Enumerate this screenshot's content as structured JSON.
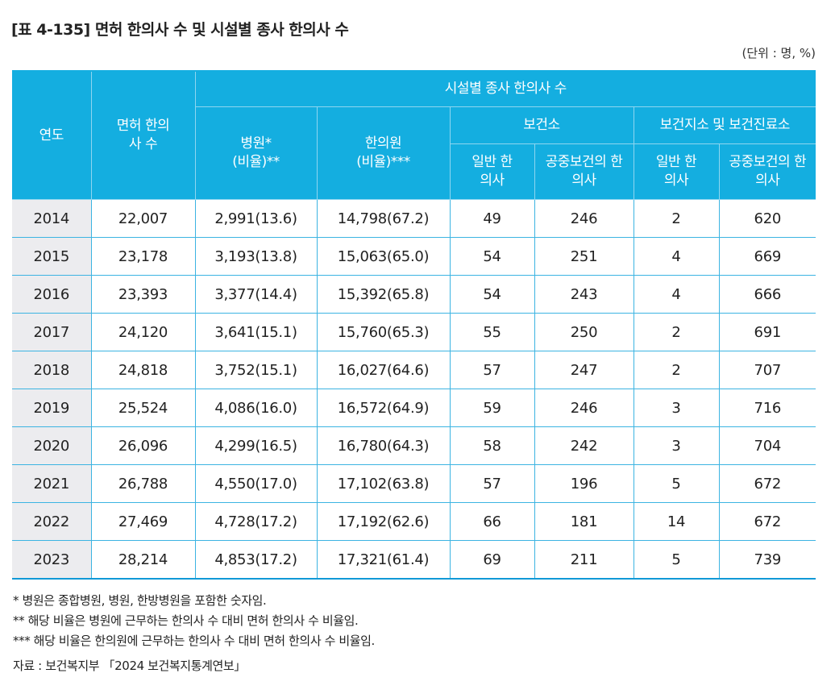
{
  "title": "[표 4-135] 면허 한의사 수 및 시설별 종사 한의사 수",
  "unit": "(단위 : 명, %)",
  "header": {
    "year": "연도",
    "licensed": "면허 한의사 수",
    "facility_group": "시설별 종사 한의사 수",
    "hospital": "병원*",
    "hospital_ratio": "(비율)**",
    "clinic": "한의원",
    "clinic_ratio": "(비율)***",
    "health_center": "보건소",
    "branch_center": "보건지소 및 보건진료소",
    "general": "일반 한의사",
    "public_health": "공중보건의 한의사",
    "general2": "일반 한의사",
    "public_health2": "공중보건의 한의사"
  },
  "rows": [
    {
      "year": "2014",
      "licensed": "22,007",
      "hospital": "2,991(13.6)",
      "clinic": "14,798(67.2)",
      "hc_general": "49",
      "hc_public": "246",
      "br_general": "2",
      "br_public": "620"
    },
    {
      "year": "2015",
      "licensed": "23,178",
      "hospital": "3,193(13.8)",
      "clinic": "15,063(65.0)",
      "hc_general": "54",
      "hc_public": "251",
      "br_general": "4",
      "br_public": "669"
    },
    {
      "year": "2016",
      "licensed": "23,393",
      "hospital": "3,377(14.4)",
      "clinic": "15,392(65.8)",
      "hc_general": "54",
      "hc_public": "243",
      "br_general": "4",
      "br_public": "666"
    },
    {
      "year": "2017",
      "licensed": "24,120",
      "hospital": "3,641(15.1)",
      "clinic": "15,760(65.3)",
      "hc_general": "55",
      "hc_public": "250",
      "br_general": "2",
      "br_public": "691"
    },
    {
      "year": "2018",
      "licensed": "24,818",
      "hospital": "3,752(15.1)",
      "clinic": "16,027(64.6)",
      "hc_general": "57",
      "hc_public": "247",
      "br_general": "2",
      "br_public": "707"
    },
    {
      "year": "2019",
      "licensed": "25,524",
      "hospital": "4,086(16.0)",
      "clinic": "16,572(64.9)",
      "hc_general": "59",
      "hc_public": "246",
      "br_general": "3",
      "br_public": "716"
    },
    {
      "year": "2020",
      "licensed": "26,096",
      "hospital": "4,299(16.5)",
      "clinic": "16,780(64.3)",
      "hc_general": "58",
      "hc_public": "242",
      "br_general": "3",
      "br_public": "704"
    },
    {
      "year": "2021",
      "licensed": "26,788",
      "hospital": "4,550(17.0)",
      "clinic": "17,102(63.8)",
      "hc_general": "57",
      "hc_public": "196",
      "br_general": "5",
      "br_public": "672"
    },
    {
      "year": "2022",
      "licensed": "27,469",
      "hospital": "4,728(17.2)",
      "clinic": "17,192(62.6)",
      "hc_general": "66",
      "hc_public": "181",
      "br_general": "14",
      "br_public": "672"
    },
    {
      "year": "2023",
      "licensed": "28,214",
      "hospital": "4,853(17.2)",
      "clinic": "17,321(61.4)",
      "hc_general": "69",
      "hc_public": "211",
      "br_general": "5",
      "br_public": "739"
    }
  ],
  "notes": [
    "* 병원은 종합병원, 병원, 한방병원을 포함한 숫자임.",
    "** 해당 비율은 병원에 근무하는 한의사 수 대비 면허 한의사 수 비율임.",
    "*** 해당 비율은 한의원에 근무하는 한의사 수 대비 면허 한의사 수 비율임."
  ],
  "source": "자료 : 보건복지부 「2024 보건복지통계연보」",
  "colors": {
    "header_bg": "#14aee0",
    "border": "#3cb4e2",
    "year_bg": "#ececef"
  }
}
